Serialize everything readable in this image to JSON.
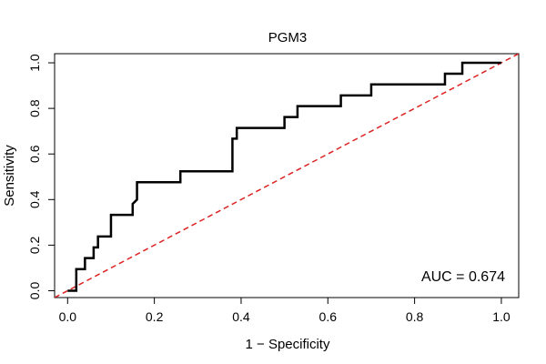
{
  "chart_data": {
    "type": "line",
    "title": "PGM3",
    "xlabel": "1 − Specificity",
    "ylabel": "Sensitivity",
    "xlim": [
      -0.03,
      1.04
    ],
    "ylim": [
      -0.03,
      1.04
    ],
    "x_ticks": [
      0.0,
      0.2,
      0.4,
      0.6,
      0.8,
      1.0
    ],
    "y_ticks": [
      0.0,
      0.2,
      0.4,
      0.6,
      0.8,
      1.0
    ],
    "x_tick_labels": [
      "0.0",
      "0.2",
      "0.4",
      "0.6",
      "0.8",
      "1.0"
    ],
    "y_tick_labels": [
      "0.0",
      "0.2",
      "0.4",
      "0.6",
      "0.8",
      "1.0"
    ],
    "grid": false,
    "annotation": "AUC = 0.674",
    "series": [
      {
        "color": "#000000",
        "x": [
          0.0,
          0.02,
          0.02,
          0.04,
          0.04,
          0.06,
          0.06,
          0.07,
          0.07,
          0.1,
          0.1,
          0.15,
          0.15,
          0.16,
          0.16,
          0.26,
          0.26,
          0.38,
          0.38,
          0.39,
          0.39,
          0.5,
          0.5,
          0.53,
          0.53,
          0.63,
          0.63,
          0.7,
          0.7,
          0.87,
          0.87,
          0.91,
          0.91,
          1.0
        ],
        "y": [
          0.0,
          0.0,
          0.095,
          0.095,
          0.143,
          0.143,
          0.19,
          0.19,
          0.238,
          0.238,
          0.333,
          0.333,
          0.381,
          0.4,
          0.476,
          0.476,
          0.524,
          0.524,
          0.667,
          0.667,
          0.714,
          0.714,
          0.762,
          0.762,
          0.81,
          0.81,
          0.857,
          0.857,
          0.905,
          0.905,
          0.952,
          0.952,
          1.0,
          1.0
        ]
      },
      {
        "color": "#dd2222",
        "dashed": true,
        "x": [
          -0.03,
          1.04
        ],
        "y": [
          -0.03,
          1.04
        ]
      }
    ]
  }
}
